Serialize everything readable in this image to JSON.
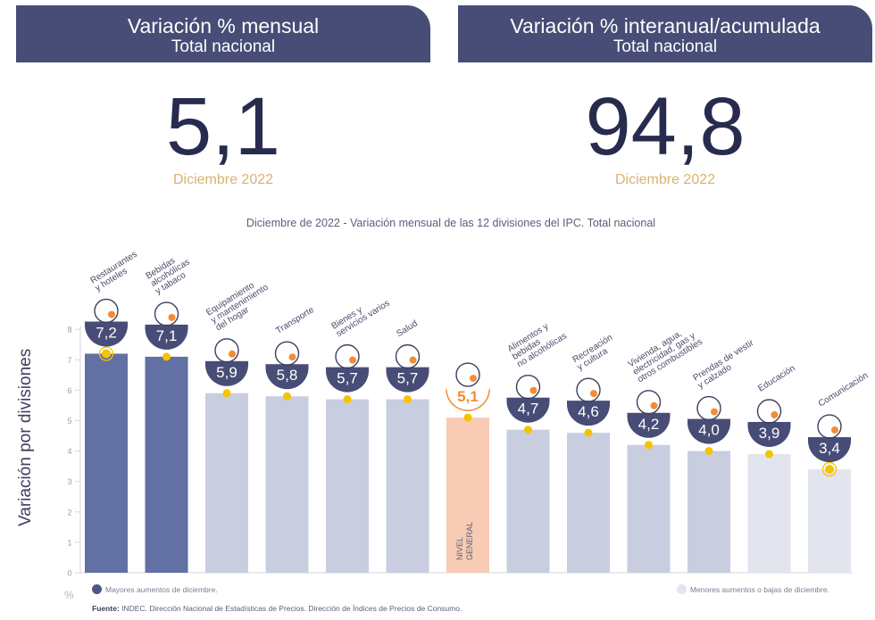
{
  "headers": {
    "monthly": {
      "title": "Variación % mensual",
      "subtitle": "Total nacional",
      "value": "5,1",
      "period": "Diciembre 2022"
    },
    "annual": {
      "title": "Variación % interanual/acumulada",
      "subtitle": "Total nacional",
      "value": "94,8",
      "period": "Diciembre 2022"
    }
  },
  "chart_title": {
    "bold": "Diciembre de 2022",
    "sep": " - ",
    "rest": "Variación mensual de las 12 divisiones del IPC. Total nacional"
  },
  "y_axis_label": "Variación por divisiones",
  "percent_symbol": "%",
  "legend": {
    "top": "Mayores aumentos de diciembre.",
    "bottom": "Menores aumentos o bajas de diciembre."
  },
  "source": {
    "label": "Fuente:",
    "text": " INDEC. Dirección Nacional de Estadísticas de Precios. Dirección de Índices de Precios de Consumo."
  },
  "colors": {
    "top": "#6270a3",
    "general": "#f7cbb4",
    "mid": "#c8cde0",
    "low": "#e3e5ee",
    "badge": "#474d76",
    "marker": "#f5c400",
    "accent": "#f28c38"
  },
  "chart_data": {
    "type": "bar",
    "title": "Diciembre de 2022 - Variación mensual de las 12 divisiones del IPC. Total nacional",
    "ylabel": "Variación por divisiones",
    "ylim": [
      0,
      8
    ],
    "yticks": [
      "0",
      "1",
      "2",
      "3",
      "4",
      "5",
      "6",
      "7",
      "8"
    ],
    "categories": [
      {
        "lines": [
          "Restaurantes",
          "y hoteles"
        ],
        "value": 7.2,
        "label": "7,2",
        "group": "top",
        "icon": "restaurant-icon"
      },
      {
        "lines": [
          "Bebidas",
          "alcohólicas",
          "y tabaco"
        ],
        "value": 7.1,
        "label": "7,1",
        "group": "top",
        "icon": "drinks-icon"
      },
      {
        "lines": [
          "Equipamiento",
          "y mantenimiento",
          "del hogar"
        ],
        "value": 5.9,
        "label": "5,9",
        "group": "mid",
        "icon": "household-icon"
      },
      {
        "lines": [
          "Transporte"
        ],
        "value": 5.8,
        "label": "5,8",
        "group": "mid",
        "icon": "bus-icon"
      },
      {
        "lines": [
          "Bienes y",
          "servicios varios"
        ],
        "value": 5.7,
        "label": "5,7",
        "group": "mid",
        "icon": "scissors-icon"
      },
      {
        "lines": [
          "Salud"
        ],
        "value": 5.7,
        "label": "5,7",
        "group": "mid",
        "icon": "first-aid-icon"
      },
      {
        "lines": [],
        "value": 5.1,
        "label": "5,1",
        "group": "general",
        "bar_text": [
          "NIVEL",
          "GENERAL"
        ],
        "icon": "basket-icon"
      },
      {
        "lines": [
          "Alimentos y",
          "bebidas",
          "no alcohólicas"
        ],
        "value": 4.7,
        "label": "4,7",
        "group": "mid",
        "icon": "food-icon"
      },
      {
        "lines": [
          "Recreación",
          "y cultura"
        ],
        "value": 4.6,
        "label": "4,6",
        "group": "mid",
        "icon": "umbrella-icon"
      },
      {
        "lines": [
          "Vivienda, agua,",
          "electricidad, gas y",
          "otros combustibles"
        ],
        "value": 4.2,
        "label": "4,2",
        "group": "mid",
        "icon": "lightbulb-icon"
      },
      {
        "lines": [
          "Prendas de vestir",
          "y calzado"
        ],
        "value": 4.0,
        "label": "4,0",
        "group": "mid",
        "icon": "shirt-icon"
      },
      {
        "lines": [
          "Educación"
        ],
        "value": 3.9,
        "label": "3,9",
        "group": "low",
        "icon": "book-icon"
      },
      {
        "lines": [
          "Comunicación"
        ],
        "value": 3.4,
        "label": "3,4",
        "group": "low",
        "icon": "phone-icon"
      }
    ]
  }
}
